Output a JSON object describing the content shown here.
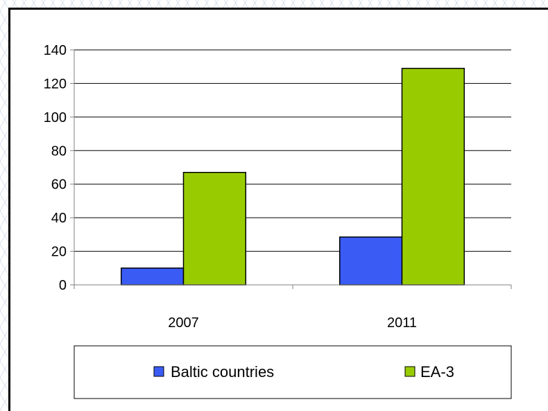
{
  "chart_data": {
    "type": "bar",
    "title": "",
    "xlabel": "",
    "ylabel": "",
    "categories": [
      "2007",
      "2011"
    ],
    "series": [
      {
        "name": "Baltic countries",
        "values": [
          10,
          28.5
        ],
        "color": "#3a5cf5"
      },
      {
        "name": "EA-3",
        "values": [
          67,
          129
        ],
        "color": "#99cc00"
      }
    ],
    "ylim": [
      0,
      140
    ],
    "yticks": [
      "0",
      "20",
      "40",
      "60",
      "80",
      "100",
      "120",
      "140"
    ],
    "grid": true,
    "legend_position": "bottom"
  }
}
